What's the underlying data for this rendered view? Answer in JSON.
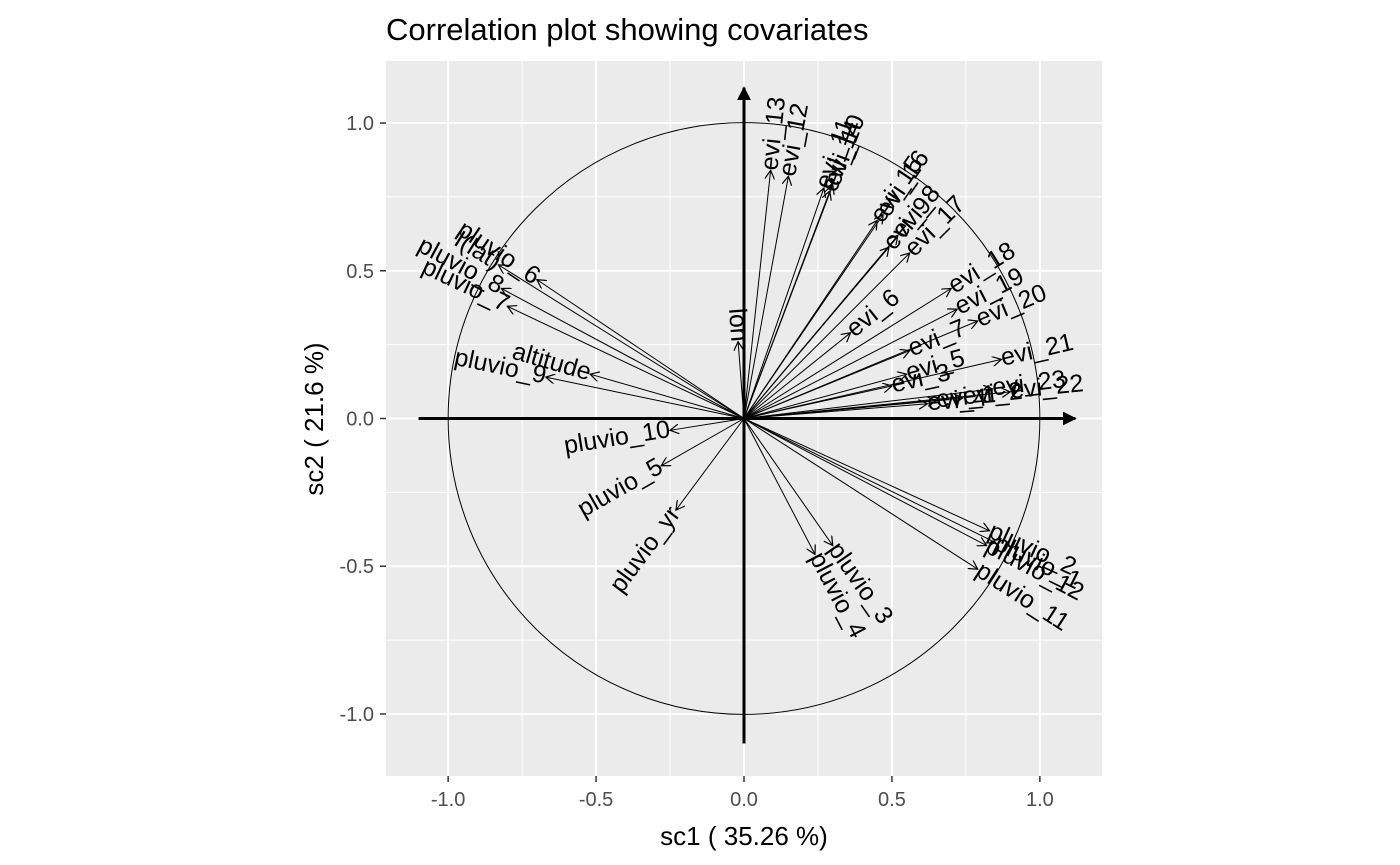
{
  "chart_data": {
    "type": "scatter",
    "title": "Correlation plot showing covariates",
    "xlabel": "sc1 ( 35.26 %)",
    "ylabel": "sc2 ( 21.6 %)",
    "xlim": [
      -1.21,
      1.21
    ],
    "ylim": [
      -1.21,
      1.21
    ],
    "x_ticks": [
      -1.0,
      -0.5,
      0.0,
      0.5,
      1.0
    ],
    "x_tick_labels": [
      "-1.0",
      "-0.5",
      "0.0",
      "0.5",
      "1.0"
    ],
    "y_ticks": [
      -1.0,
      -0.5,
      0.0,
      0.5,
      1.0
    ],
    "y_tick_labels": [
      "-1.0",
      "-0.5",
      "0.0",
      "0.5",
      "1.0"
    ],
    "grid": true,
    "unit_circle": true,
    "colors": {
      "panel": "#ebebeb",
      "grid": "#ffffff",
      "ink": "#000000",
      "tick_text": "#4d4d4d"
    },
    "axis_arrows": {
      "x_from": -1.1,
      "x_to": 1.12,
      "y_from": -1.1,
      "y_to": 1.12
    },
    "vectors": [
      {
        "label": "evi_13",
        "x": 0.09,
        "y": 0.84
      },
      {
        "label": "evi_12",
        "x": 0.15,
        "y": 0.82
      },
      {
        "label": "evi_11",
        "x": 0.27,
        "y": 0.78
      },
      {
        "label": "evi_10",
        "x": 0.3,
        "y": 0.79
      },
      {
        "label": "evi_14",
        "x": 0.29,
        "y": 0.77
      },
      {
        "label": "evi_15",
        "x": 0.45,
        "y": 0.67
      },
      {
        "label": "evi_16",
        "x": 0.47,
        "y": 0.69
      },
      {
        "label": "evi_9",
        "x": 0.49,
        "y": 0.58
      },
      {
        "label": "evi_8",
        "x": 0.52,
        "y": 0.62
      },
      {
        "label": "evi_17",
        "x": 0.56,
        "y": 0.56
      },
      {
        "label": "evi_6",
        "x": 0.36,
        "y": 0.29
      },
      {
        "label": "evi_18",
        "x": 0.7,
        "y": 0.44
      },
      {
        "label": "evi_19",
        "x": 0.72,
        "y": 0.37
      },
      {
        "label": "evi_20",
        "x": 0.79,
        "y": 0.33
      },
      {
        "label": "evi_7",
        "x": 0.56,
        "y": 0.23
      },
      {
        "label": "evi_5",
        "x": 0.55,
        "y": 0.15
      },
      {
        "label": "evi_21",
        "x": 0.87,
        "y": 0.2
      },
      {
        "label": "evi_3",
        "x": 0.5,
        "y": 0.11
      },
      {
        "label": "evi_2",
        "x": 0.74,
        "y": 0.07
      },
      {
        "label": "evi_4",
        "x": 0.62,
        "y": 0.05
      },
      {
        "label": "evi_23",
        "x": 0.84,
        "y": 0.1
      },
      {
        "label": "evi_1",
        "x": 0.65,
        "y": 0.06
      },
      {
        "label": "evi_22",
        "x": 0.9,
        "y": 0.09
      },
      {
        "label": "lon",
        "x": -0.02,
        "y": 0.26
      },
      {
        "label": "I(lat)",
        "x": -0.83,
        "y": 0.52
      },
      {
        "label": "pluvio_6",
        "x": -0.7,
        "y": 0.47
      },
      {
        "label": "pluvio_8",
        "x": -0.82,
        "y": 0.44
      },
      {
        "label": "pluvio_7",
        "x": -0.8,
        "y": 0.38
      },
      {
        "label": "altitude",
        "x": -0.52,
        "y": 0.15
      },
      {
        "label": "pluvio_9",
        "x": -0.67,
        "y": 0.14
      },
      {
        "label": "pluvio_10",
        "x": -0.25,
        "y": -0.04
      },
      {
        "label": "pluvio_5",
        "x": -0.28,
        "y": -0.16
      },
      {
        "label": "pluvio_yr",
        "x": -0.23,
        "y": -0.31
      },
      {
        "label": "pluvio_3",
        "x": 0.3,
        "y": -0.43
      },
      {
        "label": "pluvio_4",
        "x": 0.24,
        "y": -0.46
      },
      {
        "label": "pluvio_2",
        "x": 0.83,
        "y": -0.38
      },
      {
        "label": "pluvio_1",
        "x": 0.85,
        "y": -0.42
      },
      {
        "label": "pluvio_12",
        "x": 0.82,
        "y": -0.43
      },
      {
        "label": "pluvio_11",
        "x": 0.79,
        "y": -0.51
      }
    ]
  }
}
